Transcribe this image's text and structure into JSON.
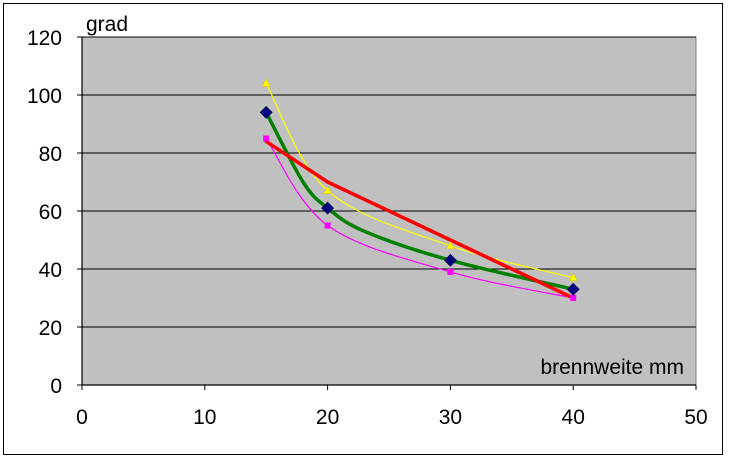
{
  "chart_data": {
    "type": "line",
    "xlabel": "brennweite mm",
    "ylabel": "grad",
    "xlim": [
      0,
      50
    ],
    "ylim": [
      0,
      120
    ],
    "x_ticks": [
      0,
      10,
      20,
      30,
      40,
      50
    ],
    "y_ticks": [
      0,
      20,
      40,
      60,
      80,
      100,
      120
    ],
    "grid": "horizontal",
    "legend": "none",
    "plot_background": "#c0c0c0",
    "series": [
      {
        "color": "#ffff00",
        "marker": "triangle",
        "smooth": true,
        "points": [
          [
            15,
            104
          ],
          [
            20,
            67
          ],
          [
            30,
            48
          ],
          [
            40,
            37
          ]
        ]
      },
      {
        "color": "#ff00ff",
        "marker": "square",
        "smooth": true,
        "points": [
          [
            15,
            85
          ],
          [
            20,
            55
          ],
          [
            30,
            39
          ],
          [
            40,
            30
          ]
        ]
      },
      {
        "color": "#008000",
        "marker": "none",
        "smooth": true,
        "points": [
          [
            15,
            94
          ],
          [
            18,
            70
          ],
          [
            20,
            61
          ],
          [
            23,
            53
          ],
          [
            30,
            43
          ],
          [
            40,
            33
          ]
        ]
      },
      {
        "color": "#ff0000",
        "marker": "none",
        "smooth": false,
        "points": [
          [
            15,
            84
          ],
          [
            20,
            70
          ],
          [
            30,
            50
          ],
          [
            35,
            40
          ],
          [
            40,
            30
          ]
        ]
      },
      {
        "color": "#000080",
        "marker": "diamond",
        "smooth": false,
        "line": false,
        "points": [
          [
            15,
            94
          ],
          [
            20,
            61
          ],
          [
            30,
            43
          ],
          [
            40,
            33
          ]
        ]
      }
    ]
  }
}
